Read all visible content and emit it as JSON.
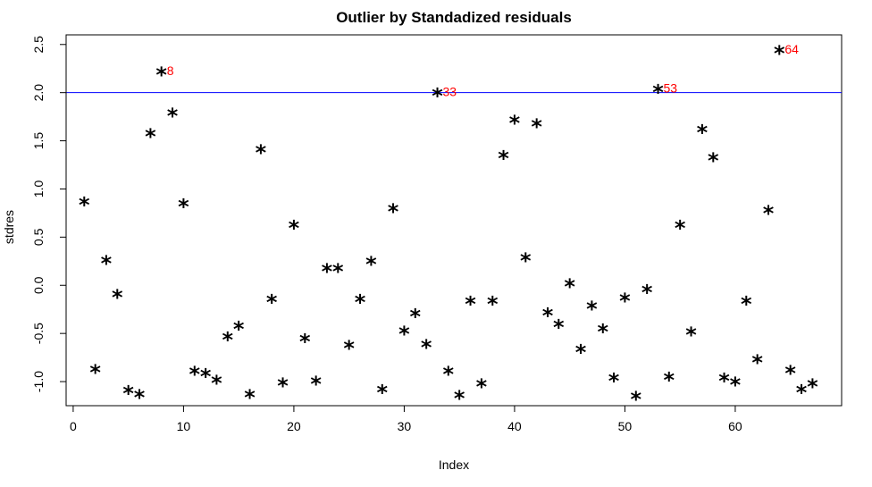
{
  "chart_data": {
    "type": "scatter",
    "title": "Outlier by Standadized residuals",
    "xlabel": "Index",
    "ylabel": "stdres",
    "xlim": [
      -0.64,
      69.64
    ],
    "ylim": [
      -1.25,
      2.6
    ],
    "xticks": [
      0,
      10,
      20,
      30,
      40,
      50,
      60
    ],
    "yticks": [
      -1.0,
      -0.5,
      0.0,
      0.5,
      1.0,
      1.5,
      2.0,
      2.5
    ],
    "ytick_labels": [
      "-1.0",
      "-0.5",
      "0.0",
      "0.5",
      "1.0",
      "1.5",
      "2.0",
      "2.5"
    ],
    "grid": false,
    "marker": "*",
    "reference_line": {
      "y": 2.0,
      "color": "#0000ff"
    },
    "outlier_label_color": "#ff0000",
    "points": [
      {
        "x": 1,
        "y": 0.88
      },
      {
        "x": 2,
        "y": -0.86
      },
      {
        "x": 3,
        "y": 0.27
      },
      {
        "x": 4,
        "y": -0.08
      },
      {
        "x": 5,
        "y": -1.08
      },
      {
        "x": 6,
        "y": -1.12
      },
      {
        "x": 7,
        "y": 1.59
      },
      {
        "x": 8,
        "y": 2.23
      },
      {
        "x": 9,
        "y": 1.8
      },
      {
        "x": 10,
        "y": 0.86
      },
      {
        "x": 11,
        "y": -0.88
      },
      {
        "x": 12,
        "y": -0.9
      },
      {
        "x": 13,
        "y": -0.97
      },
      {
        "x": 14,
        "y": -0.52
      },
      {
        "x": 15,
        "y": -0.41
      },
      {
        "x": 16,
        "y": -1.12
      },
      {
        "x": 17,
        "y": 1.42
      },
      {
        "x": 18,
        "y": -0.13
      },
      {
        "x": 19,
        "y": -1.0
      },
      {
        "x": 20,
        "y": 0.64
      },
      {
        "x": 21,
        "y": -0.54
      },
      {
        "x": 22,
        "y": -0.98
      },
      {
        "x": 23,
        "y": 0.19
      },
      {
        "x": 24,
        "y": 0.19
      },
      {
        "x": 25,
        "y": -0.61
      },
      {
        "x": 26,
        "y": -0.13
      },
      {
        "x": 27,
        "y": 0.26
      },
      {
        "x": 28,
        "y": -1.07
      },
      {
        "x": 29,
        "y": 0.81
      },
      {
        "x": 30,
        "y": -0.46
      },
      {
        "x": 31,
        "y": -0.28
      },
      {
        "x": 32,
        "y": -0.6
      },
      {
        "x": 33,
        "y": 2.01
      },
      {
        "x": 34,
        "y": -0.88
      },
      {
        "x": 35,
        "y": -1.13
      },
      {
        "x": 36,
        "y": -0.15
      },
      {
        "x": 37,
        "y": -1.01
      },
      {
        "x": 38,
        "y": -0.15
      },
      {
        "x": 39,
        "y": 1.36
      },
      {
        "x": 40,
        "y": 1.73
      },
      {
        "x": 41,
        "y": 0.3
      },
      {
        "x": 42,
        "y": 1.69
      },
      {
        "x": 43,
        "y": -0.27
      },
      {
        "x": 44,
        "y": -0.39
      },
      {
        "x": 45,
        "y": 0.03
      },
      {
        "x": 46,
        "y": -0.65
      },
      {
        "x": 47,
        "y": -0.2
      },
      {
        "x": 48,
        "y": -0.44
      },
      {
        "x": 49,
        "y": -0.95
      },
      {
        "x": 50,
        "y": -0.12
      },
      {
        "x": 51,
        "y": -1.14
      },
      {
        "x": 52,
        "y": -0.03
      },
      {
        "x": 53,
        "y": 2.05
      },
      {
        "x": 54,
        "y": -0.94
      },
      {
        "x": 55,
        "y": 0.64
      },
      {
        "x": 56,
        "y": -0.47
      },
      {
        "x": 57,
        "y": 1.63
      },
      {
        "x": 58,
        "y": 1.34
      },
      {
        "x": 59,
        "y": -0.95
      },
      {
        "x": 60,
        "y": -0.99
      },
      {
        "x": 61,
        "y": -0.15
      },
      {
        "x": 62,
        "y": -0.76
      },
      {
        "x": 63,
        "y": 0.79
      },
      {
        "x": 64,
        "y": 2.45
      },
      {
        "x": 65,
        "y": -0.87
      },
      {
        "x": 66,
        "y": -1.07
      },
      {
        "x": 67,
        "y": -1.01
      }
    ],
    "outlier_labels": [
      {
        "x": 8,
        "y": 2.23,
        "label": "8"
      },
      {
        "x": 33,
        "y": 2.01,
        "label": "33"
      },
      {
        "x": 53,
        "y": 2.05,
        "label": "53"
      },
      {
        "x": 64,
        "y": 2.45,
        "label": "64"
      }
    ]
  }
}
